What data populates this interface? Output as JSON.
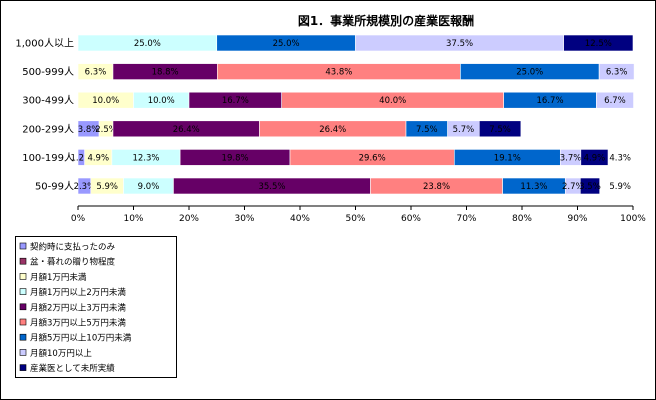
{
  "chart_data": {
    "type": "bar",
    "orientation": "horizontal",
    "stacked": "percent",
    "title": "図1．事業所規模別の産業医報酬",
    "categories": [
      "1,000人以上",
      "500-999人",
      "300-499人",
      "200-299人",
      "100-199人",
      "50-99人"
    ],
    "xlim": [
      0,
      100
    ],
    "xticks": [
      0,
      10,
      20,
      30,
      40,
      50,
      60,
      70,
      80,
      90,
      100
    ],
    "xtick_suffix": "%",
    "grid": false,
    "legend_position": "bottom-left",
    "series": [
      {
        "name": "契約時に支払ったのみ",
        "color": "#9999FF",
        "values": [
          0,
          0,
          0,
          3.8,
          1.2,
          2.3
        ],
        "labels": [
          "",
          "",
          "",
          "3.8%",
          "1.2%",
          "2.3%"
        ]
      },
      {
        "name": "盆・暮れの贈り物程度",
        "color": "#993366",
        "values": [
          0,
          0,
          0,
          0,
          0,
          0
        ],
        "labels": [
          "",
          "",
          "",
          "",
          "",
          ""
        ]
      },
      {
        "name": "月額1万円未満",
        "color": "#FFFFCC",
        "values": [
          0,
          6.3,
          10.0,
          2.5,
          4.9,
          5.9
        ],
        "labels": [
          "",
          "6.3%",
          "10.0%",
          "2.5%",
          "4.9%",
          "5.9%"
        ]
      },
      {
        "name": "月額1万円以上2万円未満",
        "color": "#CCFFFF",
        "values": [
          25.0,
          0,
          10.0,
          0,
          12.3,
          9.0
        ],
        "labels": [
          "25.0%",
          "",
          "10.0%",
          "",
          "12.3%",
          "9.0%"
        ]
      },
      {
        "name": "月額2万円以上3万円未満",
        "color": "#660066",
        "values": [
          0,
          18.8,
          16.7,
          26.4,
          19.8,
          35.5
        ],
        "labels": [
          "",
          "18.8%",
          "16.7%",
          "26.4%",
          "19.8%",
          "35.5%"
        ]
      },
      {
        "name": "月額3万円以上5万円未満",
        "color": "#FF8080",
        "values": [
          0,
          43.8,
          40.0,
          26.4,
          29.6,
          23.8
        ],
        "labels": [
          "",
          "43.8%",
          "40.0%",
          "26.4%",
          "29.6%",
          "23.8%"
        ]
      },
      {
        "name": "月額5万円以上10万円未満",
        "color": "#0066CC",
        "values": [
          25.0,
          25.0,
          16.7,
          7.5,
          19.1,
          11.3
        ],
        "labels": [
          "25.0%",
          "25.0%",
          "16.7%",
          "7.5%",
          "19.1%",
          "11.3%"
        ]
      },
      {
        "name": "月額10万円以上",
        "color": "#CCCCFF",
        "values": [
          37.5,
          6.3,
          6.7,
          5.7,
          3.7,
          2.7
        ],
        "labels": [
          "37.5%",
          "6.3%",
          "6.7%",
          "5.7%",
          "3.7%",
          "2.7%"
        ]
      },
      {
        "name": "産業医として未所実績",
        "color": "#000080",
        "values": [
          12.5,
          0,
          0,
          7.5,
          4.9,
          3.5
        ],
        "labels": [
          "12.5%",
          "",
          "",
          "7.5%",
          "4.9%",
          "3.5%"
        ]
      }
    ],
    "extra_labels": [
      {
        "category_index": 4,
        "text": "4.3%"
      },
      {
        "category_index": 5,
        "text": "5.9%"
      }
    ]
  }
}
